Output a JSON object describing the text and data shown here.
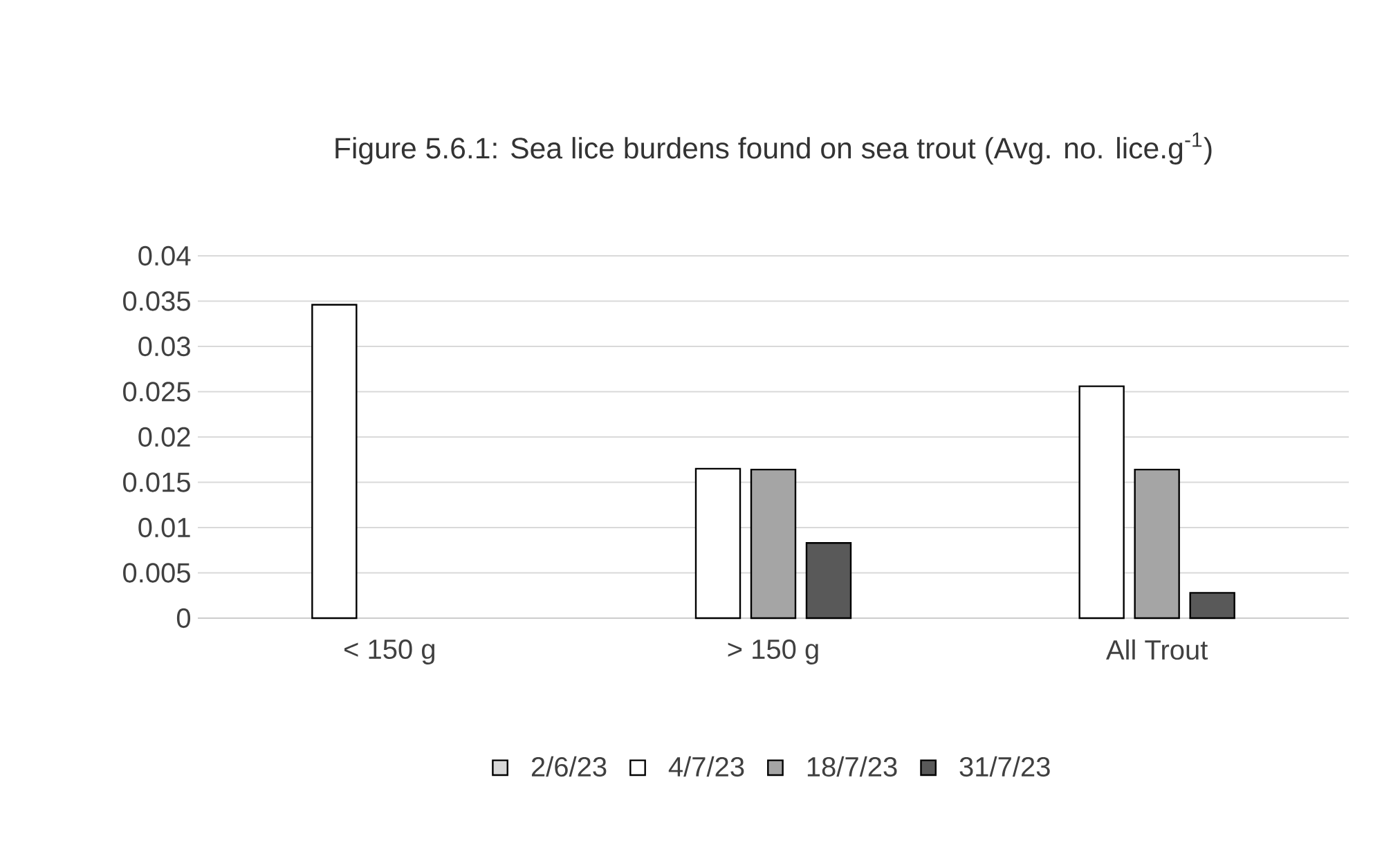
{
  "chart_data": {
    "type": "bar",
    "title": "Figure 5.6.1: Sea lice burdens found on sea trout (Avg. no. lice.g$^{-1}$)",
    "categories": [
      "< 150 g",
      "> 150 g",
      "All Trout"
    ],
    "series": [
      {
        "name": "2/6/23",
        "color": "#d9d9d9",
        "values": [
          null,
          null,
          null
        ]
      },
      {
        "name": "4/7/23",
        "color": "#ffffff",
        "values": [
          0.0346,
          0.0165,
          0.0256
        ]
      },
      {
        "name": "18/7/23",
        "color": "#a5a5a5",
        "values": [
          null,
          0.0164,
          0.0164
        ]
      },
      {
        "name": "31/7/23",
        "color": "#595959",
        "values": [
          null,
          0.0083,
          0.0028
        ]
      }
    ],
    "ylim": [
      0,
      0.04
    ],
    "yticks": [
      0,
      0.005,
      0.01,
      0.015,
      0.02,
      0.025,
      0.03,
      0.035,
      0.04
    ],
    "grid": "y",
    "legend": "bottom"
  }
}
